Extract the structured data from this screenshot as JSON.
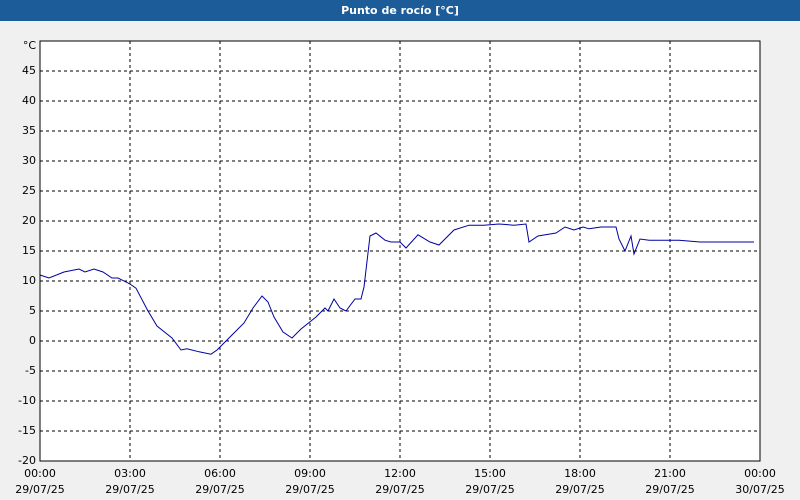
{
  "chart_data": {
    "type": "line",
    "title": "Punto de rocío [°C]",
    "y_label": "°C",
    "x": [
      0,
      0.3,
      0.8,
      1.3,
      1.5,
      1.8,
      2.1,
      2.4,
      2.6,
      3.0,
      3.2,
      3.6,
      3.9,
      4.4,
      4.7,
      4.9,
      5.3,
      5.7,
      5.9,
      6.3,
      6.5,
      6.8,
      7.1,
      7.4,
      7.6,
      7.8,
      8.1,
      8.4,
      8.7,
      9.2,
      9.5,
      9.6,
      9.8,
      10.0,
      10.2,
      10.5,
      10.7,
      10.8,
      11.0,
      11.2,
      11.5,
      11.7,
      12.0,
      12.2,
      12.6,
      13.0,
      13.3,
      13.8,
      14.3,
      14.8,
      15.3,
      15.8,
      16.2,
      16.3,
      16.6,
      17.2,
      17.5,
      17.8,
      18.1,
      18.3,
      18.7,
      19.2,
      19.3,
      19.5,
      19.7,
      19.75,
      19.8,
      20.0,
      20.3,
      21.3,
      22.0,
      23.8
    ],
    "series": [
      {
        "name": "Punto de rocío",
        "color": "#0000a0",
        "values": [
          11,
          10.5,
          11.5,
          12,
          11.5,
          12,
          11.5,
          10.5,
          10.5,
          9.5,
          8.8,
          5,
          2.5,
          0.5,
          -1.5,
          -1.3,
          -1.8,
          -2.2,
          -1.5,
          0.5,
          1.5,
          3,
          5.5,
          7.5,
          6.5,
          4,
          1.5,
          0.5,
          2,
          4,
          5.5,
          5,
          7,
          5.5,
          5,
          7,
          7,
          9,
          17.5,
          18,
          16.8,
          16.5,
          16.5,
          15.5,
          17.7,
          16.5,
          16,
          18.5,
          19.3,
          19.3,
          19.5,
          19.3,
          19.5,
          16.5,
          17.5,
          18,
          19,
          18.5,
          19,
          18.7,
          19,
          19,
          17,
          15,
          17.5,
          16,
          14.5,
          17,
          16.8,
          16.8,
          16.5,
          16.5
        ]
      }
    ],
    "xlim": [
      0,
      24
    ],
    "ylim": [
      -20,
      50
    ],
    "yticks": [
      -20,
      -15,
      -10,
      -5,
      0,
      5,
      10,
      15,
      20,
      25,
      30,
      35,
      40,
      45
    ],
    "xticks": [
      {
        "value": 0,
        "label": "00:00",
        "date": "29/07/25"
      },
      {
        "value": 3,
        "label": "03:00",
        "date": "29/07/25"
      },
      {
        "value": 6,
        "label": "06:00",
        "date": "29/07/25"
      },
      {
        "value": 9,
        "label": "09:00",
        "date": "29/07/25"
      },
      {
        "value": 12,
        "label": "12:00",
        "date": "29/07/25"
      },
      {
        "value": 15,
        "label": "15:00",
        "date": "29/07/25"
      },
      {
        "value": 18,
        "label": "18:00",
        "date": "29/07/25"
      },
      {
        "value": 21,
        "label": "21:00",
        "date": "29/07/25"
      },
      {
        "value": 24,
        "label": "00:00",
        "date": "30/07/25"
      }
    ],
    "grid": true
  }
}
